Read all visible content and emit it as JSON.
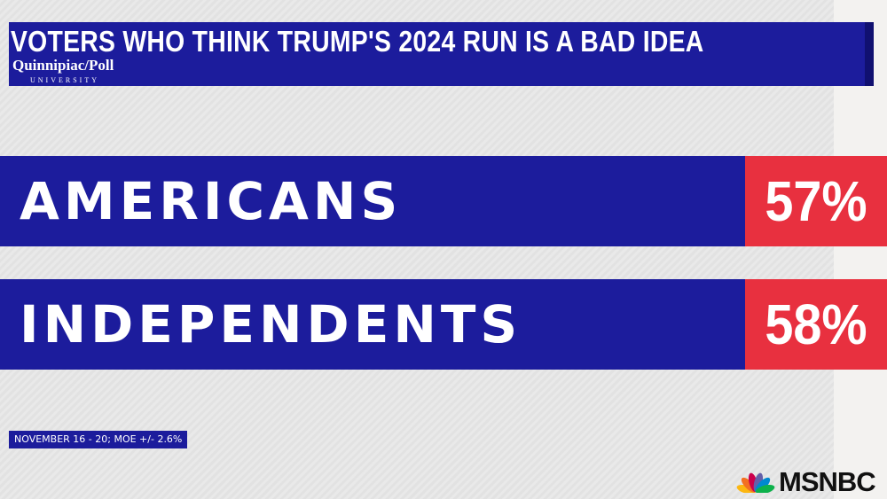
{
  "header": {
    "title": "VOTERS WHO THINK TRUMP'S 2024 RUN IS A BAD IDEA",
    "logo": {
      "name": "Quinnipiac",
      "suffix": "Poll",
      "sub": "UNIVERSITY"
    }
  },
  "rows": [
    {
      "label": "AMERICANS",
      "value": "57%"
    },
    {
      "label": "INDEPENDENTS",
      "value": "58%"
    }
  ],
  "footnote": "NOVEMBER 16 - 20; MOE +/- 2.6%",
  "network": "MSNBC"
}
